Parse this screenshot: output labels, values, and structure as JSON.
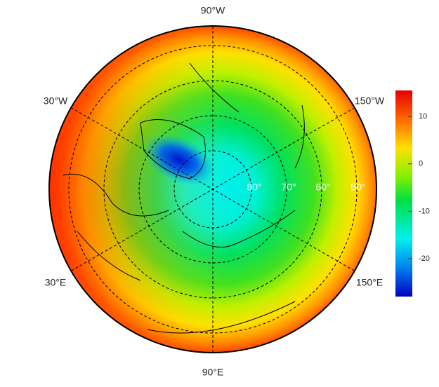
{
  "map": {
    "longitude_labels": [
      "90°W",
      "30°W",
      "150°W",
      "30°E",
      "150°E",
      "90°E"
    ],
    "latitude_labels": [
      "80°",
      "70°",
      "60°",
      "50°"
    ],
    "colorbar": {
      "lim": [
        -28,
        15.5
      ],
      "ticks": [
        10,
        0,
        -10,
        -20
      ]
    }
  }
}
